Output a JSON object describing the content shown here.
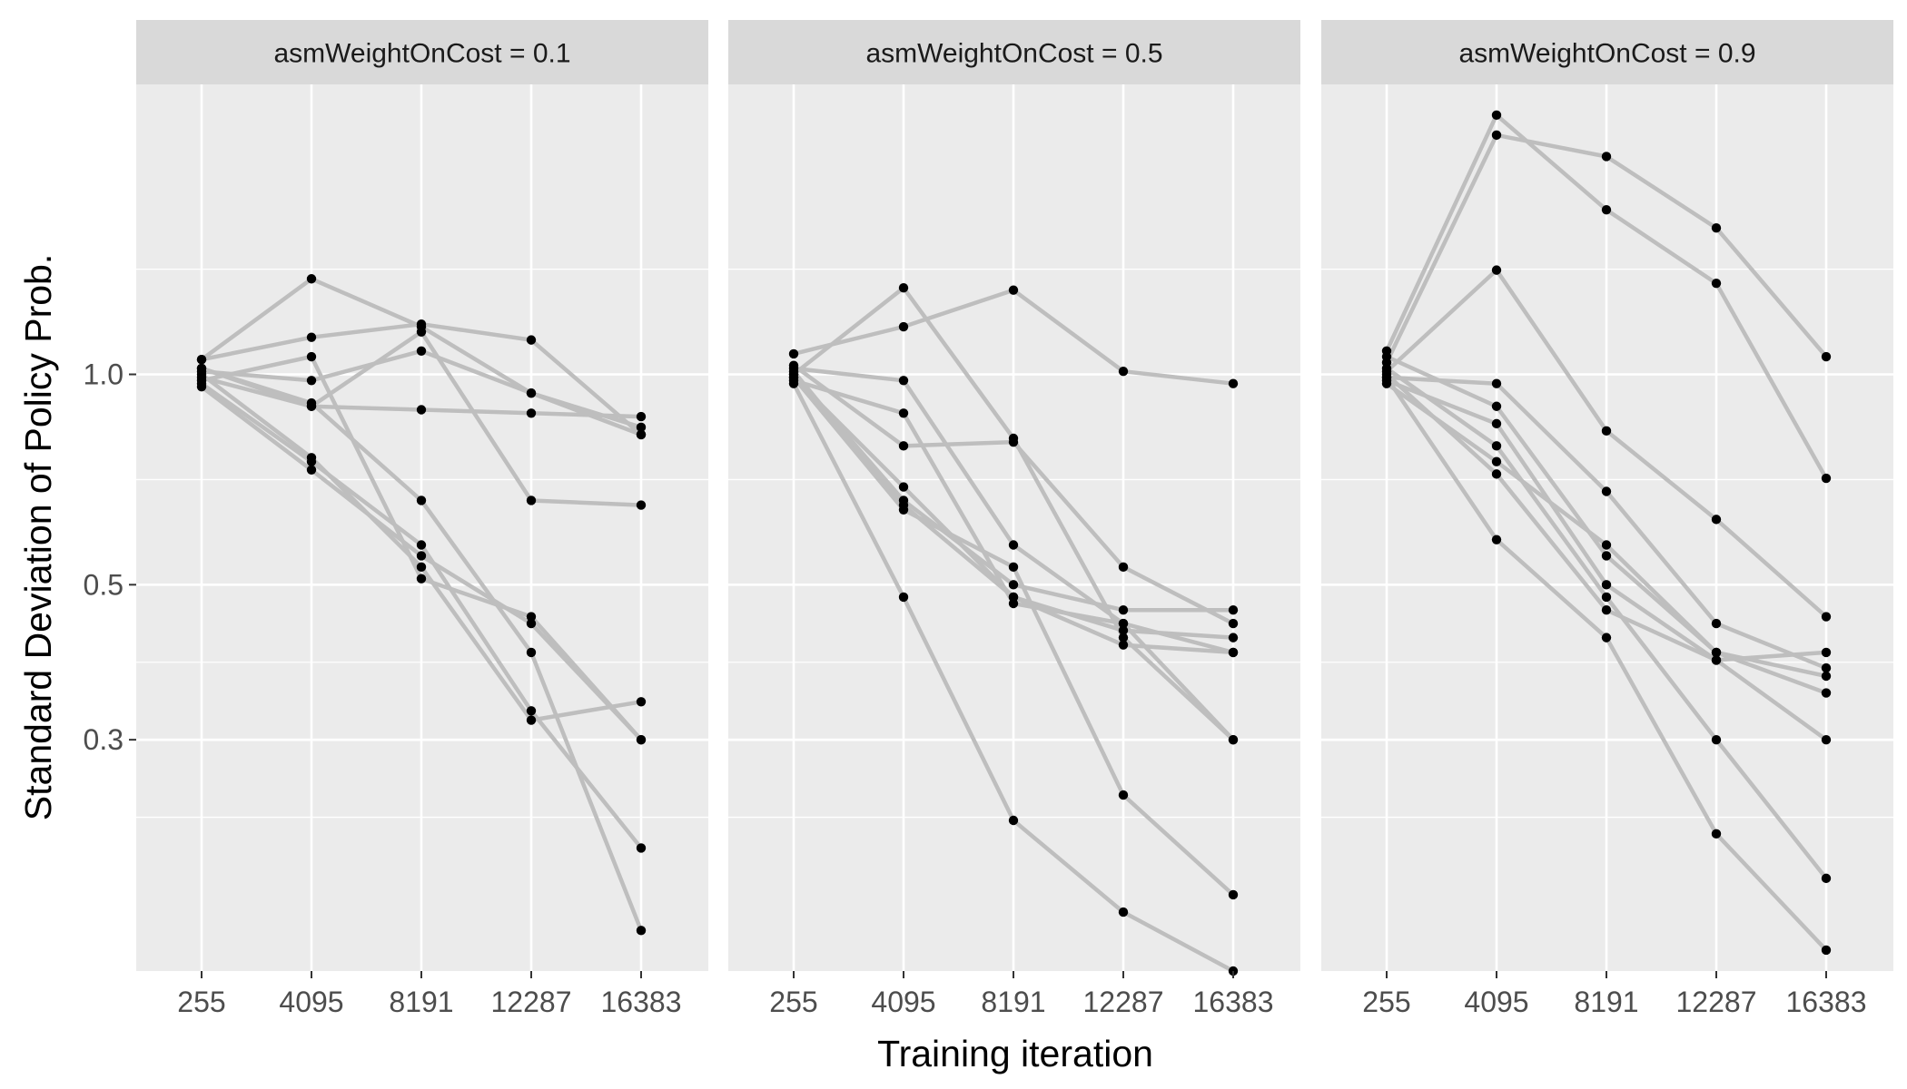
{
  "chart_data": {
    "type": "line",
    "xlabel": "Training iteration",
    "ylabel": "Standard Deviation of Policy Prob.",
    "x": [
      255,
      4095,
      8191,
      12287,
      16383
    ],
    "x_tick_labels": [
      "255",
      "4095",
      "8191",
      "12287",
      "16383"
    ],
    "y_scale": "log",
    "y_range": [
      0.14,
      2.6
    ],
    "y_ticks": [
      0.3,
      0.5,
      1.0
    ],
    "y_tick_labels": [
      "0.3",
      "0.5",
      "1.0"
    ],
    "grid": true,
    "line_color": "#bebebe",
    "point_color": "#000000",
    "panel_background": "#ebebeb",
    "strip_background": "#d9d9d9",
    "panels": [
      {
        "strip": "asmWeightOnCost = 0.1",
        "series": [
          {
            "values": [
              1.05,
              1.37,
              1.17,
              0.94,
              0.82
            ]
          },
          {
            "values": [
              1.05,
              1.13,
              1.18,
              1.12,
              0.82
            ]
          },
          {
            "values": [
              1.01,
              0.98,
              1.08,
              0.94,
              0.84
            ]
          },
          {
            "values": [
              0.99,
              0.9,
              0.89,
              0.88,
              0.87
            ]
          },
          {
            "values": [
              1.02,
              0.9,
              1.15,
              0.66,
              0.65
            ]
          },
          {
            "values": [
              0.98,
              1.06,
              0.51,
              0.45,
              0.3
            ]
          },
          {
            "values": [
              0.97,
              0.75,
              0.57,
              0.33,
              0.21
            ]
          },
          {
            "values": [
              0.96,
              0.73,
              0.55,
              0.44,
              0.3
            ]
          },
          {
            "values": [
              1.0,
              0.76,
              0.53,
              0.32,
              0.34
            ]
          },
          {
            "values": [
              1.02,
              0.91,
              0.66,
              0.4,
              0.16
            ]
          }
        ]
      },
      {
        "strip": "asmWeightOnCost = 0.5",
        "series": [
          {
            "values": [
              1.07,
              1.17,
              1.32,
              1.01,
              0.97
            ]
          },
          {
            "values": [
              1.0,
              1.33,
              0.81,
              0.42,
              0.3
            ]
          },
          {
            "values": [
              1.02,
              0.98,
              0.57,
              0.44,
              0.3
            ]
          },
          {
            "values": [
              0.98,
              0.88,
              0.47,
              0.44,
              0.4
            ]
          },
          {
            "values": [
              0.99,
              0.69,
              0.48,
              0.43,
              0.42
            ]
          },
          {
            "values": [
              1.01,
              0.65,
              0.48,
              0.41,
              0.4
            ]
          },
          {
            "values": [
              0.97,
              0.48,
              0.23,
              0.17,
              0.14
            ]
          },
          {
            "values": [
              1.0,
              0.66,
              0.5,
              0.46,
              0.46
            ]
          },
          {
            "values": [
              1.03,
              0.79,
              0.8,
              0.53,
              0.44
            ]
          },
          {
            "values": [
              0.99,
              0.64,
              0.53,
              0.25,
              0.18
            ]
          }
        ]
      },
      {
        "strip": "asmWeightOnCost = 0.9",
        "series": [
          {
            "values": [
              1.04,
              2.2,
              2.05,
              1.62,
              1.06
            ]
          },
          {
            "values": [
              1.08,
              2.35,
              1.72,
              1.35,
              0.71
            ]
          },
          {
            "values": [
              1.01,
              1.41,
              0.83,
              0.62,
              0.45
            ]
          },
          {
            "values": [
              0.99,
              0.97,
              0.68,
              0.44,
              0.38
            ]
          },
          {
            "values": [
              1.06,
              0.9,
              0.55,
              0.4,
              0.37
            ]
          },
          {
            "values": [
              0.98,
              0.85,
              0.5,
              0.39,
              0.4
            ]
          },
          {
            "values": [
              1.02,
              0.79,
              0.48,
              0.3,
              0.19
            ]
          },
          {
            "values": [
              0.97,
              0.75,
              0.57,
              0.4,
              0.35
            ]
          },
          {
            "values": [
              1.0,
              0.72,
              0.46,
              0.39,
              0.3
            ]
          },
          {
            "values": [
              0.99,
              0.58,
              0.42,
              0.22,
              0.15
            ]
          }
        ]
      }
    ]
  }
}
